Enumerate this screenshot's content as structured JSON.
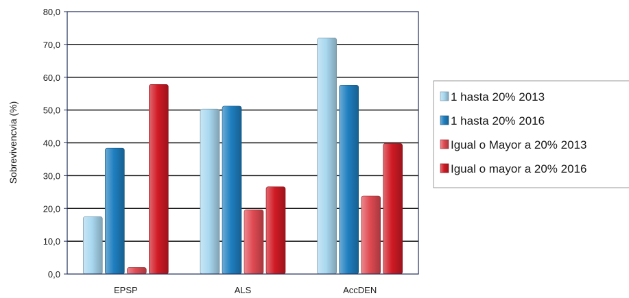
{
  "chart_data": {
    "type": "bar",
    "title": "",
    "xlabel": "",
    "ylabel": "Sobrevivencvia (%)",
    "ylim": [
      0,
      80
    ],
    "ytick_step": 10,
    "ytick_labels": [
      "0,0",
      "10,0",
      "20,0",
      "30,0",
      "40,0",
      "50,0",
      "60,0",
      "70,0",
      "80,0"
    ],
    "grid": "horizontal",
    "legend_position": "right",
    "categories": [
      "EPSP",
      "ALS",
      "AccDEN"
    ],
    "series": [
      {
        "name": "1 hasta 20% 2013",
        "values": [
          17.5,
          50.3,
          72.0
        ],
        "color": "#a9d8f0"
      },
      {
        "name": "1 hasta 20% 2016",
        "values": [
          38.4,
          51.2,
          57.6
        ],
        "color": "#1f7fc0"
      },
      {
        "name": "Igual o Mayor a 20% 2013",
        "values": [
          2.0,
          19.6,
          23.8
        ],
        "color": "#e04a52"
      },
      {
        "name": "Igual o mayor a 20% 2016",
        "values": [
          57.8,
          26.6,
          39.8
        ],
        "color": "#d11a24"
      }
    ]
  }
}
